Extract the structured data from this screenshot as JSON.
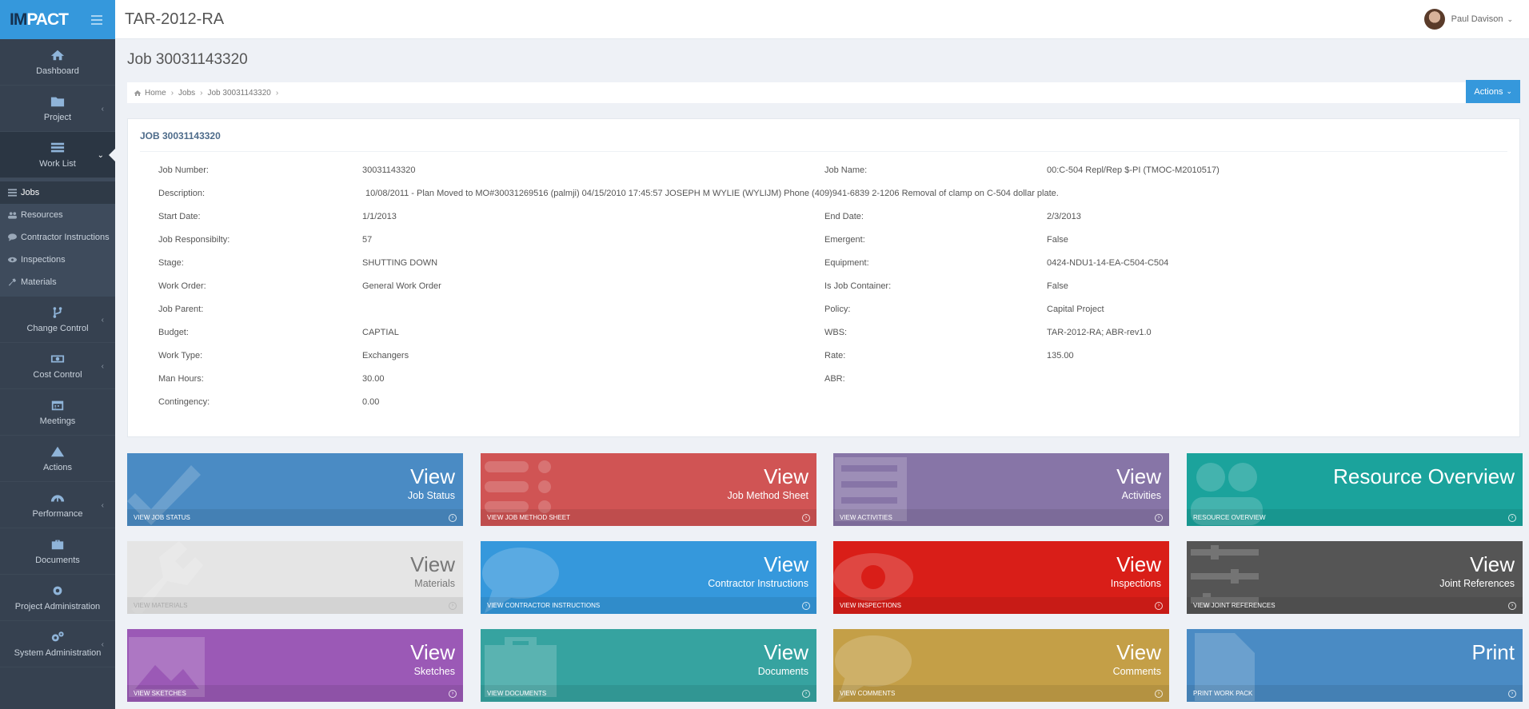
{
  "brand": {
    "logo_prefix": "IM",
    "logo_rest": "PACT"
  },
  "header": {
    "title": "TAR-2012-RA",
    "user_name": "Paul Davison"
  },
  "sidebar": {
    "items": [
      {
        "label": "Dashboard",
        "icon": "home-icon"
      },
      {
        "label": "Project",
        "icon": "folder-icon"
      },
      {
        "label": "Work List",
        "icon": "list-icon"
      },
      {
        "label": "Change Control",
        "icon": "branch-icon"
      },
      {
        "label": "Cost Control",
        "icon": "money-icon"
      },
      {
        "label": "Meetings",
        "icon": "calendar-icon"
      },
      {
        "label": "Actions",
        "icon": "warning-icon"
      },
      {
        "label": "Performance",
        "icon": "dashboard-icon"
      },
      {
        "label": "Documents",
        "icon": "briefcase-icon"
      },
      {
        "label": "Project Administration",
        "icon": "cog-icon"
      },
      {
        "label": "System Administration",
        "icon": "cogs-icon"
      }
    ],
    "worklist_sub": [
      {
        "label": "Jobs",
        "icon": "list-icon"
      },
      {
        "label": "Resources",
        "icon": "users-icon"
      },
      {
        "label": "Contractor Instructions",
        "icon": "comment-icon"
      },
      {
        "label": "Inspections",
        "icon": "eye-icon"
      },
      {
        "label": "Materials",
        "icon": "wrench-icon"
      }
    ]
  },
  "page": {
    "title": "Job 30031143320",
    "actions_label": "Actions"
  },
  "breadcrumb": {
    "home": "Home",
    "jobs": "Jobs",
    "current": "Job 30031143320"
  },
  "panel": {
    "title": "JOB 30031143320",
    "rows": [
      {
        "k1": "Job Number:",
        "v1": "30031143320",
        "k2": "Job Name:",
        "v2": "00:C-504 Repl/Rep $-PI (TMOC-M2010517)"
      },
      {
        "k1": "Description:",
        "v1": "10/08/2011 - Plan Moved to MO#30031269516 (palmji) 04/15/2010 17:45:57 JOSEPH M WYLIE (WYLIJM) Phone (409)941-6839 2-1206 Removal of clamp on C-504 dollar plate.",
        "k2": "",
        "v2": ""
      },
      {
        "k1": "Start Date:",
        "v1": "1/1/2013",
        "k2": "End Date:",
        "v2": "2/3/2013"
      },
      {
        "k1": "Job Responsibilty:",
        "v1": "57",
        "k2": "Emergent:",
        "v2": "False"
      },
      {
        "k1": "Stage:",
        "v1": "SHUTTING DOWN",
        "k2": "Equipment:",
        "v2": "0424-NDU1-14-EA-C504-C504"
      },
      {
        "k1": "Work Order:",
        "v1": "General Work Order",
        "k2": "Is Job Container:",
        "v2": "False"
      },
      {
        "k1": "Job Parent:",
        "v1": "",
        "k2": "Policy:",
        "v2": "Capital Project"
      },
      {
        "k1": "Budget:",
        "v1": "CAPTIAL",
        "k2": "WBS:",
        "v2": "TAR-2012-RA; ABR-rev1.0"
      },
      {
        "k1": "Work Type:",
        "v1": "Exchangers",
        "k2": "Rate:",
        "v2": "135.00"
      },
      {
        "k1": "Man Hours:",
        "v1": "30.00",
        "k2": "ABR:",
        "v2": ""
      },
      {
        "k1": "Contingency:",
        "v1": "0.00",
        "k2": "",
        "v2": ""
      }
    ]
  },
  "tiles": [
    {
      "big": "View",
      "small": "Job Status",
      "foot": "VIEW JOB STATUS",
      "color": "#4a8bc4",
      "icon": "check-icon"
    },
    {
      "big": "View",
      "small": "Job Method Sheet",
      "foot": "VIEW JOB METHOD SHEET",
      "color": "#d05454",
      "icon": "list-icon"
    },
    {
      "big": "View",
      "small": "Activities",
      "foot": "VIEW ACTIVITIES",
      "color": "#8775a7",
      "icon": "list-alt-icon"
    },
    {
      "big": "Resource Overview",
      "small": "",
      "foot": "RESOURCE OVERVIEW",
      "color": "#1ba39c",
      "icon": "users-icon"
    },
    {
      "big": "View",
      "small": "Materials",
      "foot": "VIEW MATERIALS",
      "color": "#e5e5e5",
      "icon": "wrench-icon"
    },
    {
      "big": "View",
      "small": "Contractor Instructions",
      "foot": "VIEW CONTRACTOR INSTRUCTIONS",
      "color": "#3598dc",
      "icon": "comment-icon"
    },
    {
      "big": "View",
      "small": "Inspections",
      "foot": "VIEW INSPECTIONS",
      "color": "#d91e18",
      "icon": "eye-icon"
    },
    {
      "big": "View",
      "small": "Joint References",
      "foot": "VIEW JOINT REFERENCES",
      "color": "#555555",
      "icon": "tasks-icon"
    },
    {
      "big": "View",
      "small": "Sketches",
      "foot": "VIEW SKETCHES",
      "color": "#9b59b6",
      "icon": "picture-icon"
    },
    {
      "big": "View",
      "small": "Documents",
      "foot": "VIEW DOCUMENTS",
      "color": "#36a3a0",
      "icon": "briefcase-icon"
    },
    {
      "big": "View",
      "small": "Comments",
      "foot": "VIEW COMMENTS",
      "color": "#c49f47",
      "icon": "comment-icon"
    },
    {
      "big": "Print",
      "small": "",
      "foot": "PRINT WORK PACK",
      "color": "#4a8bc4",
      "icon": "file-icon"
    }
  ]
}
